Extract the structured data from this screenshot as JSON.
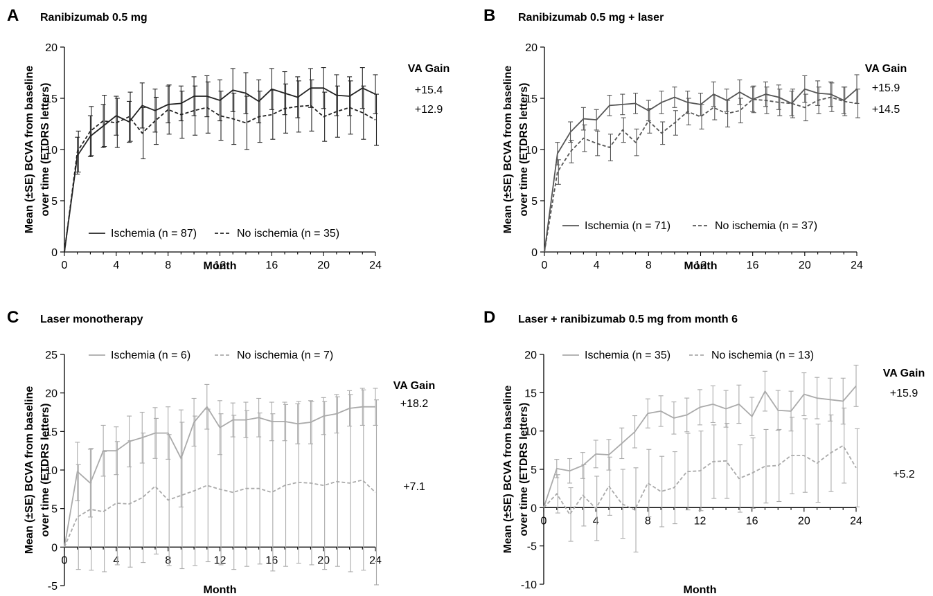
{
  "chart_data": [
    {
      "type": "line",
      "panel": "A",
      "title": "Ranibizumab  0.5 mg",
      "xlabel": "Month",
      "ylabel_lines": [
        "Mean (±SE) BCVA from baseline",
        "over time (ETDRS letters)"
      ],
      "xlim": [
        0,
        24
      ],
      "ylim": [
        0,
        20
      ],
      "xticks": [
        0,
        4,
        8,
        12,
        16,
        20,
        24
      ],
      "yticks": [
        0,
        5,
        10,
        15,
        20
      ],
      "gain_title": "VA Gain",
      "legend_position": "bottom",
      "series": [
        {
          "name": "Ischemia (n = 87)",
          "style": "solid",
          "color": "#222222",
          "gain": "+15.4",
          "x": [
            0,
            1,
            2,
            3,
            4,
            5,
            6,
            7,
            8,
            9,
            10,
            11,
            12,
            13,
            14,
            15,
            16,
            17,
            18,
            19,
            20,
            21,
            22,
            23,
            24
          ],
          "y": [
            0,
            9.4,
            11.3,
            12.3,
            13.3,
            12.7,
            14.3,
            13.8,
            14.4,
            14.5,
            15.2,
            15.2,
            14.8,
            15.8,
            15.5,
            14.7,
            15.9,
            15.5,
            15.1,
            16.0,
            16.0,
            15.3,
            15.2,
            16.0,
            15.4
          ],
          "err": [
            0,
            1.8,
            2.0,
            2.1,
            1.9,
            2.0,
            2.2,
            2.1,
            1.8,
            1.7,
            1.9,
            2.0,
            2.0,
            2.1,
            2.0,
            2.1,
            2.0,
            2.1,
            2.0,
            1.9,
            2.0,
            2.0,
            1.9,
            2.0,
            1.9
          ]
        },
        {
          "name": "No ischemia (n = 35)",
          "style": "dashed",
          "color": "#222222",
          "gain": "+12.9",
          "x": [
            0,
            1,
            2,
            3,
            4,
            5,
            6,
            7,
            8,
            9,
            10,
            11,
            12,
            13,
            14,
            15,
            16,
            17,
            18,
            19,
            20,
            21,
            22,
            23,
            24
          ],
          "y": [
            0,
            9.8,
            11.8,
            12.8,
            12.6,
            13.2,
            11.6,
            12.8,
            13.9,
            13.4,
            13.8,
            14.1,
            13.3,
            13.0,
            12.6,
            13.2,
            13.4,
            14.0,
            14.2,
            14.3,
            13.2,
            13.7,
            14.1,
            13.6,
            12.9
          ],
          "err": [
            0,
            2.0,
            2.4,
            2.5,
            2.4,
            2.4,
            2.5,
            2.3,
            2.4,
            2.3,
            2.4,
            2.5,
            2.4,
            2.5,
            2.6,
            2.5,
            2.4,
            2.4,
            2.5,
            2.5,
            2.4,
            2.5,
            2.6,
            2.6,
            2.5
          ]
        }
      ]
    },
    {
      "type": "line",
      "panel": "B",
      "title": "Ranibizumab  0.5 mg + laser",
      "xlabel": "Month",
      "ylabel_lines": [
        "Mean (±SE) BCVA from baseline",
        "over time (ETDRS letters)"
      ],
      "xlim": [
        0,
        24
      ],
      "ylim": [
        0,
        20
      ],
      "xticks": [
        0,
        4,
        8,
        12,
        16,
        20,
        24
      ],
      "yticks": [
        0,
        5,
        10,
        15,
        20
      ],
      "gain_title": "VA Gain",
      "legend_position": "bottom",
      "series": [
        {
          "name": "Ischemia (n = 71)",
          "style": "solid",
          "color": "#555555",
          "gain": "+15.9",
          "x": [
            0,
            1,
            2,
            3,
            4,
            5,
            6,
            7,
            8,
            9,
            10,
            11,
            12,
            13,
            14,
            15,
            16,
            17,
            18,
            19,
            20,
            21,
            22,
            23,
            24
          ],
          "y": [
            0,
            9.6,
            11.7,
            13.0,
            12.9,
            14.3,
            14.4,
            14.5,
            13.8,
            14.6,
            15.1,
            14.6,
            14.4,
            15.4,
            14.8,
            15.6,
            14.9,
            15.4,
            15.1,
            14.5,
            15.9,
            15.5,
            15.4,
            14.8,
            15.9
          ],
          "err": [
            0,
            1.1,
            1.0,
            1.1,
            1.0,
            1.0,
            1.0,
            1.0,
            1.0,
            1.1,
            1.0,
            1.1,
            1.1,
            1.2,
            1.1,
            1.2,
            1.2,
            1.2,
            1.2,
            1.2,
            1.3,
            1.2,
            1.2,
            1.3,
            1.4
          ]
        },
        {
          "name": "No ischemia (n = 37)",
          "style": "dashed",
          "color": "#555555",
          "gain": "+14.5",
          "x": [
            0,
            1,
            2,
            3,
            4,
            5,
            6,
            7,
            8,
            9,
            10,
            11,
            12,
            13,
            14,
            15,
            16,
            17,
            18,
            19,
            20,
            21,
            22,
            23,
            24
          ],
          "y": [
            0,
            7.8,
            9.8,
            11.1,
            10.6,
            10.2,
            11.9,
            10.7,
            12.8,
            11.6,
            12.6,
            13.7,
            13.2,
            14.1,
            13.5,
            13.8,
            14.9,
            14.8,
            14.6,
            14.5,
            14.1,
            14.8,
            15.1,
            14.7,
            14.5
          ],
          "err": [
            0,
            1.2,
            1.1,
            1.3,
            1.2,
            1.3,
            1.2,
            1.3,
            1.2,
            1.1,
            1.2,
            1.3,
            1.2,
            1.2,
            1.3,
            1.2,
            1.3,
            1.3,
            1.3,
            1.4,
            1.3,
            1.3,
            1.4,
            1.4,
            1.4
          ]
        }
      ]
    },
    {
      "type": "line",
      "panel": "C",
      "title": "Laser monotherapy",
      "xlabel": "Month",
      "ylabel_lines": [
        "Mean (±SE) BCVA from baseline",
        "over time (ETDRS letters)"
      ],
      "xlim": [
        0,
        24
      ],
      "ylim": [
        -5,
        25
      ],
      "xticks": [
        0,
        4,
        8,
        12,
        16,
        20,
        24
      ],
      "yticks": [
        -5,
        0,
        5,
        10,
        15,
        20,
        25
      ],
      "gain_title": "VA Gain",
      "legend_position": "top",
      "series": [
        {
          "name": "Ischemia (n = 6)",
          "style": "solid",
          "color": "#aaaaaa",
          "gain": "+18.2",
          "x": [
            0,
            1,
            2,
            3,
            4,
            5,
            6,
            7,
            8,
            9,
            10,
            11,
            12,
            13,
            14,
            15,
            16,
            17,
            18,
            19,
            20,
            21,
            22,
            23,
            24
          ],
          "y": [
            0,
            9.8,
            8.3,
            12.5,
            12.5,
            13.7,
            14.2,
            14.8,
            14.8,
            11.5,
            16.2,
            18.2,
            15.5,
            16.5,
            16.5,
            16.8,
            16.3,
            16.3,
            16.0,
            16.2,
            17.0,
            17.3,
            18.0,
            18.2,
            18.2
          ],
          "err": [
            0,
            3.8,
            4.4,
            3.3,
            3.1,
            3.3,
            3.3,
            3.3,
            3.4,
            6.3,
            3.1,
            2.9,
            3.5,
            2.2,
            2.3,
            2.5,
            2.5,
            2.5,
            2.6,
            2.8,
            2.4,
            2.5,
            2.3,
            2.4,
            2.4
          ]
        },
        {
          "name": "No ischemia (n = 7)",
          "style": "dashed",
          "color": "#aaaaaa",
          "gain": "+7.1",
          "x": [
            0,
            1,
            2,
            3,
            4,
            5,
            6,
            7,
            8,
            9,
            10,
            11,
            12,
            13,
            14,
            15,
            16,
            17,
            18,
            19,
            20,
            21,
            22,
            23,
            24
          ],
          "y": [
            0,
            3.9,
            4.9,
            4.6,
            5.7,
            5.6,
            6.4,
            7.9,
            6.1,
            6.7,
            7.3,
            8.0,
            7.5,
            7.1,
            7.6,
            7.6,
            7.1,
            8.0,
            8.4,
            8.3,
            8.0,
            8.5,
            8.3,
            8.7,
            7.1
          ],
          "err": [
            0,
            6.8,
            7.9,
            7.8,
            8.0,
            8.2,
            8.4,
            8.8,
            8.5,
            9.5,
            9.7,
            9.9,
            9.8,
            10.0,
            10.1,
            9.8,
            10.2,
            10.5,
            10.5,
            10.6,
            10.9,
            11.0,
            11.5,
            11.7,
            12.0
          ]
        }
      ]
    },
    {
      "type": "line",
      "panel": "D",
      "title": "Laser + ranibizumab 0.5 mg from month 6",
      "xlabel": "Month",
      "ylabel_lines": [
        "Mean (±SE) BCVA from baseline",
        "over time (ETDRS letters)"
      ],
      "xlim": [
        0,
        24
      ],
      "ylim": [
        -10,
        20
      ],
      "xticks": [
        0,
        4,
        8,
        12,
        16,
        20,
        24
      ],
      "yticks": [
        -10,
        -5,
        0,
        5,
        10,
        15,
        20
      ],
      "gain_title": "VA Gain",
      "legend_position": "top",
      "series": [
        {
          "name": "Ischemia (n = 35)",
          "style": "solid",
          "color": "#aaaaaa",
          "gain": "+15.9",
          "x": [
            0,
            1,
            2,
            3,
            4,
            5,
            6,
            7,
            8,
            9,
            10,
            11,
            12,
            13,
            14,
            15,
            16,
            17,
            18,
            19,
            20,
            21,
            22,
            23,
            24
          ],
          "y": [
            0,
            5.1,
            4.8,
            5.5,
            7.0,
            6.9,
            8.4,
            9.9,
            12.3,
            12.6,
            11.7,
            12.1,
            13.1,
            13.5,
            12.9,
            13.5,
            11.9,
            15.2,
            12.7,
            12.6,
            14.8,
            14.3,
            14.1,
            13.9,
            15.9
          ],
          "err": [
            0,
            1.2,
            1.6,
            1.7,
            1.8,
            2.0,
            2.0,
            2.1,
            1.9,
            2.0,
            2.1,
            2.2,
            2.3,
            2.4,
            2.4,
            2.5,
            2.5,
            2.6,
            2.6,
            2.6,
            2.8,
            2.7,
            2.8,
            3.0,
            2.7
          ]
        },
        {
          "name": "No ischemia (n = 13)",
          "style": "dashed",
          "color": "#aaaaaa",
          "gain": "+5.2",
          "x": [
            0,
            1,
            2,
            3,
            4,
            5,
            6,
            7,
            8,
            9,
            10,
            11,
            12,
            13,
            14,
            15,
            16,
            17,
            18,
            19,
            20,
            21,
            22,
            23,
            24
          ],
          "y": [
            0,
            1.8,
            -0.9,
            1.6,
            -0.1,
            2.8,
            0.5,
            -0.3,
            3.2,
            2.1,
            2.6,
            4.7,
            4.8,
            6.0,
            6.1,
            3.8,
            4.5,
            5.4,
            5.5,
            6.8,
            6.8,
            5.8,
            7.1,
            8.1,
            5.2
          ],
          "err": [
            0,
            2.5,
            3.5,
            4.0,
            4.2,
            3.8,
            4.5,
            5.5,
            4.4,
            4.6,
            4.7,
            5.0,
            5.2,
            4.8,
            4.9,
            4.4,
            4.6,
            4.8,
            4.7,
            5.0,
            4.8,
            5.1,
            5.0,
            4.9,
            5.1
          ]
        }
      ]
    }
  ]
}
